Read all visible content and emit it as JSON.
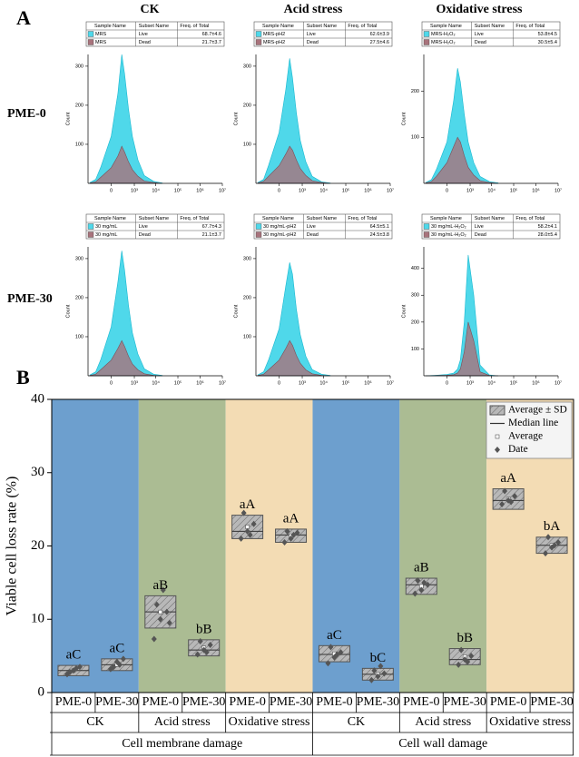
{
  "figure": {
    "panel_a": "A",
    "panel_b": "B",
    "columns": [
      "CK",
      "Acid stress",
      "Oxidative stress"
    ],
    "rows": [
      "PME-0",
      "PME-30"
    ],
    "row_colors": [
      "#4a7ea8",
      "#98ad86"
    ],
    "table_headers": [
      "Sample Name",
      "Subset Name",
      "Freq. of Total"
    ]
  },
  "chart_data": [
    {
      "type": "area",
      "ylabel": "Count",
      "xscale": "symlog",
      "x": [
        -800,
        -400,
        -200,
        0,
        100,
        200,
        300,
        500,
        800,
        1500,
        3000,
        8000,
        20000
      ],
      "xlim": [
        -1000,
        10000000
      ],
      "xticks": [
        {
          "value": 0,
          "label": "0"
        },
        {
          "value": 1000,
          "label": "10³"
        },
        {
          "value": 10000,
          "label": "10⁴"
        },
        {
          "value": 100000,
          "label": "10⁵"
        },
        {
          "value": 1000000,
          "label": "10⁶"
        },
        {
          "value": 10000000,
          "label": "10⁷"
        }
      ],
      "ylim": [
        0,
        330
      ],
      "yticks": [
        100,
        200,
        300
      ],
      "series": [
        {
          "name": "Live",
          "sample": "MRS",
          "freq": "68.7±4.6",
          "color": "#4fd8ea",
          "values": [
            2,
            10,
            40,
            120,
            230,
            330,
            280,
            190,
            120,
            60,
            20,
            5,
            1
          ]
        },
        {
          "name": "Dead",
          "sample": "MRS",
          "freq": "21.7±3.7",
          "color": "#a8737c",
          "values": [
            1,
            4,
            15,
            40,
            70,
            95,
            80,
            55,
            35,
            18,
            6,
            2,
            0
          ]
        }
      ]
    },
    {
      "type": "area",
      "ylabel": "Count",
      "xscale": "symlog",
      "x": [
        -800,
        -400,
        -200,
        0,
        100,
        200,
        300,
        500,
        800,
        1500,
        3000,
        8000,
        20000
      ],
      "xlim": [
        -1000,
        10000000
      ],
      "xticks": [
        {
          "value": 0,
          "label": "0"
        },
        {
          "value": 1000,
          "label": "10³"
        },
        {
          "value": 10000,
          "label": "10⁴"
        },
        {
          "value": 100000,
          "label": "10⁵"
        },
        {
          "value": 1000000,
          "label": "10⁶"
        },
        {
          "value": 10000000,
          "label": "10⁷"
        }
      ],
      "ylim": [
        0,
        330
      ],
      "yticks": [
        100,
        200,
        300
      ],
      "series": [
        {
          "name": "Live",
          "sample": "MRS-pH2",
          "freq": "62.6±3.9",
          "color": "#4fd8ea",
          "values": [
            2,
            10,
            45,
            130,
            240,
            320,
            270,
            180,
            110,
            55,
            18,
            4,
            1
          ]
        },
        {
          "name": "Dead",
          "sample": "MRS-pH2",
          "freq": "27.5±4.6",
          "color": "#a8737c",
          "values": [
            1,
            5,
            18,
            45,
            75,
            95,
            85,
            60,
            38,
            20,
            7,
            2,
            0
          ]
        }
      ]
    },
    {
      "type": "area",
      "ylabel": "Count",
      "xscale": "symlog",
      "x": [
        -800,
        -400,
        -200,
        0,
        100,
        200,
        300,
        500,
        800,
        1500,
        3000,
        8000,
        20000
      ],
      "xlim": [
        -1000,
        10000000
      ],
      "xticks": [
        {
          "value": 0,
          "label": "0"
        },
        {
          "value": 1000,
          "label": "10³"
        },
        {
          "value": 10000,
          "label": "10⁴"
        },
        {
          "value": 100000,
          "label": "10⁵"
        },
        {
          "value": 1000000,
          "label": "10⁶"
        },
        {
          "value": 10000000,
          "label": "10⁷"
        }
      ],
      "ylim": [
        0,
        280
      ],
      "yticks": [
        100,
        200
      ],
      "series": [
        {
          "name": "Live",
          "sample": "MRS-H₂O₂",
          "freq": "53.8±4.5",
          "color": "#4fd8ea",
          "values": [
            2,
            8,
            30,
            90,
            180,
            250,
            220,
            150,
            90,
            45,
            15,
            4,
            1
          ]
        },
        {
          "name": "Dead",
          "sample": "MRS-H₂O₂",
          "freq": "30.5±5.4",
          "color": "#a8737c",
          "values": [
            1,
            4,
            15,
            45,
            80,
            100,
            90,
            60,
            35,
            18,
            6,
            2,
            0
          ]
        }
      ]
    },
    {
      "type": "area",
      "ylabel": "Count",
      "xscale": "symlog",
      "x": [
        -800,
        -400,
        -200,
        0,
        100,
        200,
        300,
        500,
        800,
        1500,
        3000,
        8000,
        20000
      ],
      "xlim": [
        -1000,
        10000000
      ],
      "xticks": [
        {
          "value": 0,
          "label": "0"
        },
        {
          "value": 1000,
          "label": "10³"
        },
        {
          "value": 10000,
          "label": "10⁴"
        },
        {
          "value": 100000,
          "label": "10⁵"
        },
        {
          "value": 1000000,
          "label": "10⁶"
        },
        {
          "value": 10000000,
          "label": "10⁷"
        }
      ],
      "ylim": [
        0,
        330
      ],
      "yticks": [
        100,
        200,
        300
      ],
      "series": [
        {
          "name": "Live",
          "sample": "30 mg/mL",
          "freq": "67.7±4.3",
          "color": "#4fd8ea",
          "values": [
            2,
            10,
            40,
            125,
            240,
            320,
            270,
            180,
            110,
            55,
            18,
            4,
            1
          ]
        },
        {
          "name": "Dead",
          "sample": "30 mg/mL",
          "freq": "21.1±3.7",
          "color": "#a8737c",
          "values": [
            1,
            4,
            15,
            40,
            70,
            90,
            75,
            50,
            30,
            15,
            5,
            1,
            0
          ]
        }
      ]
    },
    {
      "type": "area",
      "ylabel": "Count",
      "xscale": "symlog",
      "x": [
        -800,
        -400,
        -200,
        0,
        100,
        200,
        300,
        500,
        800,
        1500,
        3000,
        8000,
        20000
      ],
      "xlim": [
        -1000,
        10000000
      ],
      "xticks": [
        {
          "value": 0,
          "label": "0"
        },
        {
          "value": 1000,
          "label": "10³"
        },
        {
          "value": 10000,
          "label": "10⁴"
        },
        {
          "value": 100000,
          "label": "10⁵"
        },
        {
          "value": 1000000,
          "label": "10⁶"
        },
        {
          "value": 10000000,
          "label": "10⁷"
        }
      ],
      "ylim": [
        0,
        330
      ],
      "yticks": [
        100,
        200,
        300
      ],
      "series": [
        {
          "name": "Live",
          "sample": "30 mg/mL-pH2",
          "freq": "64.5±5.1",
          "color": "#4fd8ea",
          "values": [
            2,
            10,
            40,
            120,
            230,
            290,
            260,
            170,
            105,
            50,
            16,
            4,
            1
          ]
        },
        {
          "name": "Dead",
          "sample": "30 mg/mL-pH2",
          "freq": "24.5±3.8",
          "color": "#a8737c",
          "values": [
            1,
            4,
            15,
            40,
            70,
            90,
            78,
            52,
            32,
            15,
            5,
            1,
            0
          ]
        }
      ]
    },
    {
      "type": "area",
      "ylabel": "Count",
      "xscale": "symlog",
      "x": [
        -800,
        -400,
        -200,
        0,
        100,
        200,
        300,
        500,
        800,
        1500,
        3000,
        8000,
        20000
      ],
      "xlim": [
        -1000,
        10000000
      ],
      "xticks": [
        {
          "value": 0,
          "label": "0"
        },
        {
          "value": 1000,
          "label": "10³"
        },
        {
          "value": 10000,
          "label": "10⁴"
        },
        {
          "value": 100000,
          "label": "10⁵"
        },
        {
          "value": 1000000,
          "label": "10⁶"
        },
        {
          "value": 10000000,
          "label": "10⁷"
        }
      ],
      "ylim": [
        0,
        480
      ],
      "yticks": [
        100,
        200,
        300,
        400
      ],
      "series": [
        {
          "name": "Live",
          "sample": "30 mg/mL-H₂O₂",
          "freq": "58.2±4.1",
          "color": "#4fd8ea",
          "values": [
            0,
            1,
            2,
            5,
            10,
            25,
            60,
            200,
            450,
            300,
            40,
            3,
            0
          ]
        },
        {
          "name": "Dead",
          "sample": "30 mg/mL-H₂O₂",
          "freq": "28.0±5.4",
          "color": "#a8737c",
          "values": [
            0,
            0,
            1,
            2,
            4,
            10,
            25,
            90,
            200,
            130,
            15,
            1,
            0
          ]
        }
      ]
    },
    {
      "type": "box",
      "ylabel": "Viable cell loss rate (%)",
      "ylim": [
        0,
        40
      ],
      "yticks": [
        0,
        10,
        20,
        30,
        40
      ],
      "legend": "upper right",
      "legend_labels": [
        "Average ± SD",
        "Median line",
        "Average",
        "Date"
      ],
      "categories": [
        "PME-0",
        "PME-30",
        "PME-0",
        "PME-30",
        "PME-0",
        "PME-30",
        "PME-0",
        "PME-30",
        "PME-0",
        "PME-30",
        "PME-0",
        "PME-30"
      ],
      "groups": [
        "CK",
        "Acid stress",
        "Oxidative stress",
        "CK",
        "Acid stress",
        "Oxidative stress"
      ],
      "band_colors": [
        "#6d9fce",
        "#abbc93",
        "#f3dcb4",
        "#6d9fce",
        "#abbc93",
        "#f3dcb4"
      ],
      "super_groups": [
        "Cell membrane damage",
        "Cell wall damage"
      ],
      "boxes": [
        {
          "mean": 3.0,
          "sd": 0.7,
          "median": 3.0,
          "points": [
            2.5,
            3.0,
            3.5,
            2.8,
            3.3
          ],
          "letter": "aC"
        },
        {
          "mean": 3.8,
          "sd": 0.8,
          "median": 3.8,
          "points": [
            3.2,
            4.2,
            4.6,
            3.5,
            3.8
          ],
          "letter": "aC"
        },
        {
          "mean": 11.0,
          "sd": 2.2,
          "median": 11.0,
          "points": [
            7.3,
            10.0,
            11.0,
            12.0,
            14.0,
            9.5
          ],
          "letter": "aB"
        },
        {
          "mean": 6.1,
          "sd": 1.1,
          "median": 5.8,
          "points": [
            5.2,
            5.8,
            6.5,
            7.0,
            5.5
          ],
          "letter": "bB"
        },
        {
          "mean": 22.6,
          "sd": 1.6,
          "median": 22.0,
          "points": [
            21.0,
            22.0,
            23.0,
            24.5,
            21.5
          ],
          "letter": "aA"
        },
        {
          "mean": 21.4,
          "sd": 0.9,
          "median": 21.5,
          "points": [
            20.5,
            21.0,
            21.8,
            22.0,
            21.5
          ],
          "letter": "aA"
        },
        {
          "mean": 5.3,
          "sd": 1.1,
          "median": 5.2,
          "points": [
            4.0,
            4.8,
            5.5,
            6.2,
            5.2
          ],
          "letter": "aC"
        },
        {
          "mean": 2.5,
          "sd": 0.8,
          "median": 2.5,
          "points": [
            1.7,
            2.2,
            2.6,
            3.0,
            3.6
          ],
          "letter": "bC"
        },
        {
          "mean": 14.5,
          "sd": 1.1,
          "median": 14.7,
          "points": [
            13.5,
            14.0,
            14.7,
            15.3,
            15.0
          ],
          "letter": "aB"
        },
        {
          "mean": 4.9,
          "sd": 1.1,
          "median": 4.5,
          "points": [
            3.8,
            4.5,
            5.0,
            5.8,
            4.2
          ],
          "letter": "bB"
        },
        {
          "mean": 26.4,
          "sd": 1.4,
          "median": 26.2,
          "points": [
            25.7,
            26.2,
            26.8,
            27.5,
            26.0
          ],
          "letter": "aA"
        },
        {
          "mean": 20.1,
          "sd": 1.1,
          "median": 20.1,
          "points": [
            19.0,
            19.8,
            20.5,
            21.2,
            20.1
          ],
          "letter": "bA"
        }
      ]
    }
  ]
}
